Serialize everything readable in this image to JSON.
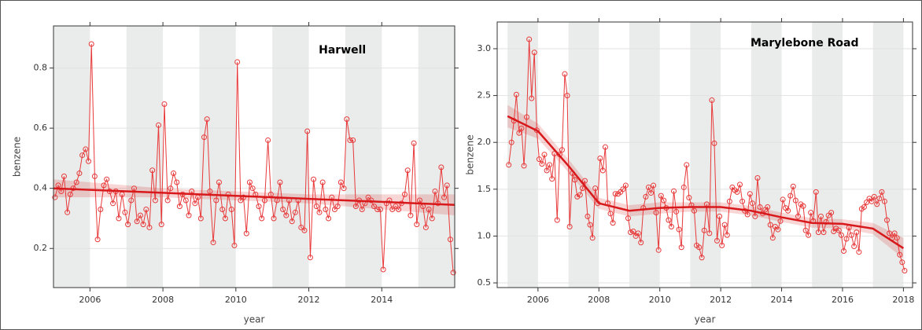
{
  "chart_data": [
    {
      "type": "line",
      "title": "Harwell",
      "xlabel": "year",
      "ylabel": "benzene",
      "xlim": [
        2005,
        2016
      ],
      "ylim": [
        0.07,
        0.94
      ],
      "xticks": [
        2006,
        2008,
        2010,
        2012,
        2014
      ],
      "yticks": [
        0.2,
        0.4,
        0.6,
        0.8
      ],
      "x": [
        2005.04,
        2005.13,
        2005.21,
        2005.29,
        2005.38,
        2005.46,
        2005.54,
        2005.63,
        2005.71,
        2005.79,
        2005.88,
        2005.96,
        2006.04,
        2006.13,
        2006.21,
        2006.29,
        2006.38,
        2006.46,
        2006.54,
        2006.63,
        2006.71,
        2006.79,
        2006.88,
        2006.96,
        2007.04,
        2007.13,
        2007.21,
        2007.29,
        2007.38,
        2007.46,
        2007.54,
        2007.63,
        2007.71,
        2007.79,
        2007.88,
        2007.96,
        2008.04,
        2008.13,
        2008.21,
        2008.29,
        2008.38,
        2008.46,
        2008.54,
        2008.63,
        2008.71,
        2008.79,
        2008.88,
        2008.96,
        2009.04,
        2009.13,
        2009.21,
        2009.29,
        2009.38,
        2009.46,
        2009.54,
        2009.63,
        2009.71,
        2009.79,
        2009.88,
        2009.96,
        2010.04,
        2010.13,
        2010.21,
        2010.29,
        2010.38,
        2010.46,
        2010.54,
        2010.63,
        2010.71,
        2010.79,
        2010.88,
        2010.96,
        2011.04,
        2011.13,
        2011.21,
        2011.29,
        2011.38,
        2011.46,
        2011.54,
        2011.63,
        2011.71,
        2011.79,
        2011.88,
        2011.96,
        2012.04,
        2012.13,
        2012.21,
        2012.29,
        2012.38,
        2012.46,
        2012.54,
        2012.63,
        2012.71,
        2012.79,
        2012.88,
        2012.96,
        2013.04,
        2013.13,
        2013.21,
        2013.29,
        2013.38,
        2013.46,
        2013.54,
        2013.63,
        2013.71,
        2013.79,
        2013.88,
        2013.96,
        2014.04,
        2014.13,
        2014.21,
        2014.29,
        2014.38,
        2014.46,
        2014.54,
        2014.63,
        2014.71,
        2014.79,
        2014.88,
        2014.96,
        2015.04,
        2015.13,
        2015.21,
        2015.29,
        2015.38,
        2015.46,
        2015.54,
        2015.63,
        2015.71,
        2015.79,
        2015.88,
        2015.96
      ],
      "series": [
        {
          "color": "#e8393a",
          "values": [
            0.37,
            0.41,
            0.39,
            0.44,
            0.32,
            0.38,
            0.4,
            0.42,
            0.45,
            0.51,
            0.53,
            0.49,
            0.88,
            0.44,
            0.23,
            0.33,
            0.41,
            0.43,
            0.39,
            0.35,
            0.39,
            0.3,
            0.38,
            0.32,
            0.28,
            0.36,
            0.4,
            0.29,
            0.31,
            0.28,
            0.33,
            0.27,
            0.46,
            0.36,
            0.61,
            0.28,
            0.68,
            0.36,
            0.4,
            0.45,
            0.42,
            0.34,
            0.38,
            0.36,
            0.31,
            0.39,
            0.35,
            0.37,
            0.3,
            0.57,
            0.63,
            0.39,
            0.22,
            0.36,
            0.42,
            0.33,
            0.3,
            0.38,
            0.33,
            0.21,
            0.82,
            0.36,
            0.37,
            0.25,
            0.42,
            0.4,
            0.38,
            0.34,
            0.3,
            0.36,
            0.56,
            0.38,
            0.3,
            0.36,
            0.42,
            0.33,
            0.31,
            0.36,
            0.29,
            0.32,
            0.36,
            0.27,
            0.26,
            0.59,
            0.17,
            0.43,
            0.34,
            0.32,
            0.42,
            0.33,
            0.3,
            0.37,
            0.33,
            0.34,
            0.42,
            0.4,
            0.63,
            0.56,
            0.56,
            0.34,
            0.36,
            0.33,
            0.35,
            0.37,
            0.36,
            0.34,
            0.33,
            0.33,
            0.13,
            0.35,
            0.36,
            0.33,
            0.34,
            0.33,
            0.35,
            0.38,
            0.46,
            0.31,
            0.55,
            0.28,
            0.36,
            0.34,
            0.27,
            0.33,
            0.3,
            0.39,
            0.35,
            0.47,
            0.37,
            0.41,
            0.23,
            0.12
          ]
        }
      ],
      "smooth": {
        "color": "#d7191c",
        "x": [
          2005,
          2006,
          2007,
          2008,
          2009,
          2010,
          2011,
          2012,
          2013,
          2014,
          2015,
          2016
        ],
        "values": [
          0.4,
          0.395,
          0.39,
          0.385,
          0.38,
          0.375,
          0.37,
          0.365,
          0.36,
          0.355,
          0.35,
          0.345
        ],
        "lower": [
          0.37,
          0.37,
          0.37,
          0.37,
          0.365,
          0.36,
          0.355,
          0.35,
          0.34,
          0.33,
          0.32,
          0.31
        ],
        "upper": [
          0.43,
          0.42,
          0.41,
          0.4,
          0.395,
          0.39,
          0.385,
          0.38,
          0.38,
          0.38,
          0.38,
          0.38
        ]
      }
    },
    {
      "type": "line",
      "title": "Marylebone Road",
      "xlabel": "year",
      "ylabel": "benzene",
      "xlim": [
        2004.66,
        2018.3
      ],
      "ylim": [
        0.45,
        3.285
      ],
      "xticks": [
        2006,
        2008,
        2010,
        2012,
        2014,
        2016,
        2018
      ],
      "yticks": [
        0.5,
        {
          "value": 1,
          "label": "1.0"
        },
        1.5,
        {
          "value": 2,
          "label": "2.0"
        },
        2.5,
        {
          "value": 3,
          "label": "3.0"
        }
      ],
      "x": [
        2005.04,
        2005.13,
        2005.21,
        2005.29,
        2005.38,
        2005.46,
        2005.54,
        2005.63,
        2005.71,
        2005.79,
        2005.88,
        2005.96,
        2006.04,
        2006.13,
        2006.21,
        2006.29,
        2006.38,
        2006.46,
        2006.54,
        2006.63,
        2006.71,
        2006.79,
        2006.88,
        2006.96,
        2007.04,
        2007.13,
        2007.21,
        2007.29,
        2007.38,
        2007.46,
        2007.54,
        2007.63,
        2007.71,
        2007.79,
        2007.88,
        2007.96,
        2008.04,
        2008.13,
        2008.21,
        2008.29,
        2008.38,
        2008.46,
        2008.54,
        2008.63,
        2008.71,
        2008.79,
        2008.88,
        2008.96,
        2009.04,
        2009.13,
        2009.21,
        2009.29,
        2009.38,
        2009.46,
        2009.54,
        2009.63,
        2009.71,
        2009.79,
        2009.88,
        2009.96,
        2010.04,
        2010.13,
        2010.21,
        2010.29,
        2010.38,
        2010.46,
        2010.54,
        2010.63,
        2010.71,
        2010.79,
        2010.88,
        2010.96,
        2011.04,
        2011.13,
        2011.21,
        2011.29,
        2011.38,
        2011.46,
        2011.54,
        2011.63,
        2011.71,
        2011.79,
        2011.88,
        2011.96,
        2012.04,
        2012.13,
        2012.21,
        2012.29,
        2012.38,
        2012.46,
        2012.54,
        2012.63,
        2012.71,
        2012.79,
        2012.88,
        2012.96,
        2013.04,
        2013.13,
        2013.21,
        2013.29,
        2013.38,
        2013.46,
        2013.54,
        2013.63,
        2013.71,
        2013.79,
        2013.88,
        2013.96,
        2014.04,
        2014.13,
        2014.21,
        2014.29,
        2014.38,
        2014.46,
        2014.54,
        2014.63,
        2014.71,
        2014.79,
        2014.88,
        2014.96,
        2015.04,
        2015.13,
        2015.21,
        2015.29,
        2015.38,
        2015.46,
        2015.54,
        2015.63,
        2015.71,
        2015.79,
        2015.88,
        2015.96,
        2016.04,
        2016.13,
        2016.21,
        2016.29,
        2016.38,
        2016.46,
        2016.54,
        2016.63,
        2016.71,
        2016.79,
        2016.88,
        2016.96,
        2017.04,
        2017.13,
        2017.21,
        2017.29,
        2017.38,
        2017.46,
        2017.54,
        2017.63,
        2017.71,
        2017.79,
        2017.88,
        2017.96,
        2018.04
      ],
      "series": [
        {
          "color": "#e8393a",
          "values": [
            1.76,
            2.0,
            2.23,
            2.51,
            2.1,
            2.15,
            1.75,
            2.27,
            3.1,
            2.47,
            2.96,
            2.13,
            1.82,
            1.77,
            1.87,
            1.7,
            1.76,
            1.61,
            1.88,
            1.17,
            1.87,
            1.92,
            2.73,
            2.5,
            1.1,
            1.67,
            1.6,
            1.42,
            1.44,
            1.51,
            1.59,
            1.21,
            1.12,
            0.98,
            1.51,
            1.35,
            1.83,
            1.7,
            1.95,
            1.35,
            1.24,
            1.14,
            1.45,
            1.45,
            1.47,
            1.5,
            1.54,
            1.19,
            1.04,
            1.05,
            1.0,
            1.03,
            0.93,
            1.3,
            1.42,
            1.52,
            1.46,
            1.54,
            1.25,
            0.85,
            1.43,
            1.38,
            1.3,
            1.17,
            1.1,
            1.48,
            1.26,
            1.07,
            0.88,
            1.52,
            1.76,
            1.41,
            1.33,
            1.27,
            0.9,
            0.88,
            0.77,
            1.06,
            1.34,
            1.03,
            2.45,
            1.99,
            0.95,
            1.21,
            0.9,
            1.12,
            1.01,
            1.37,
            1.52,
            1.49,
            1.47,
            1.55,
            1.37,
            1.27,
            1.23,
            1.45,
            1.35,
            1.21,
            1.62,
            1.31,
            1.24,
            1.28,
            1.31,
            1.12,
            0.98,
            1.1,
            1.07,
            1.16,
            1.39,
            1.3,
            1.27,
            1.43,
            1.53,
            1.38,
            1.21,
            1.34,
            1.32,
            1.06,
            1.01,
            1.25,
            1.16,
            1.47,
            1.04,
            1.21,
            1.04,
            1.15,
            1.22,
            1.25,
            1.05,
            1.08,
            1.06,
            1.01,
            0.84,
            0.97,
            1.09,
            1.01,
            0.89,
            1.04,
            0.83,
            1.29,
            1.31,
            1.36,
            1.4,
            1.37,
            1.42,
            1.34,
            1.4,
            1.47,
            1.37,
            1.17,
            1.03,
            0.98,
            1.03,
            0.98,
            0.8,
            0.72,
            0.63
          ]
        }
      ],
      "smooth": {
        "color": "#d7191c",
        "x": [
          2005,
          2006,
          2007,
          2008,
          2009,
          2010,
          2011,
          2012,
          2013,
          2014,
          2015,
          2016,
          2017,
          2018
        ],
        "values": [
          2.28,
          2.12,
          1.75,
          1.35,
          1.27,
          1.3,
          1.31,
          1.31,
          1.27,
          1.2,
          1.14,
          1.13,
          1.08,
          0.87
        ],
        "lower": [
          2.16,
          2.04,
          1.68,
          1.29,
          1.21,
          1.24,
          1.26,
          1.26,
          1.22,
          1.15,
          1.09,
          1.08,
          1.02,
          0.76
        ],
        "upper": [
          2.4,
          2.2,
          1.82,
          1.41,
          1.33,
          1.36,
          1.36,
          1.36,
          1.32,
          1.25,
          1.19,
          1.18,
          1.14,
          0.98
        ]
      }
    }
  ]
}
